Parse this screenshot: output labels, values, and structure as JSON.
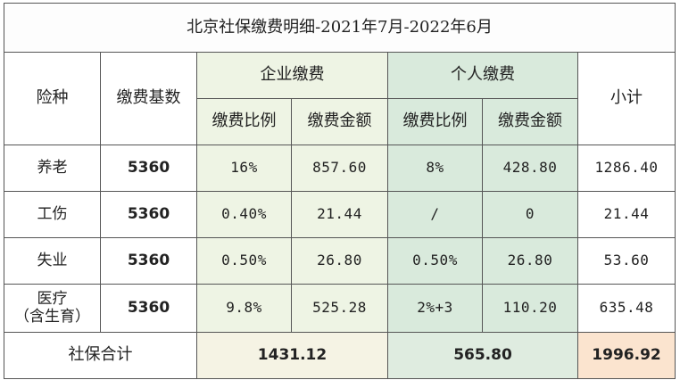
{
  "title": "北京社保缴费明细-2021年7月-2022年6月",
  "headers": {
    "type": "险种",
    "base": "缴费基数",
    "enterprise": "企业缴费",
    "personal": "个人缴费",
    "subtotal": "小计",
    "ratio": "缴费比例",
    "amount": "缴费金额"
  },
  "rows": [
    {
      "name": "养老",
      "name2": "",
      "base": "5360",
      "ent_ratio": "16%",
      "ent_amount": "857.60",
      "per_ratio": "8%",
      "per_amount": "428.80",
      "subtotal": "1286.40"
    },
    {
      "name": "工伤",
      "name2": "",
      "base": "5360",
      "ent_ratio": "0.40%",
      "ent_amount": "21.44",
      "per_ratio": "/",
      "per_amount": "0",
      "subtotal": "21.44"
    },
    {
      "name": "失业",
      "name2": "",
      "base": "5360",
      "ent_ratio": "0.50%",
      "ent_amount": "26.80",
      "per_ratio": "0.50%",
      "per_amount": "26.80",
      "subtotal": "53.60"
    },
    {
      "name": "医疗",
      "name2": "（含生育）",
      "base": "5360",
      "ent_ratio": "9.8%",
      "ent_amount": "525.28",
      "per_ratio": "2%+3",
      "per_amount": "110.20",
      "subtotal": "635.48"
    }
  ],
  "total": {
    "label": "社保合计",
    "enterprise": "1431.12",
    "personal": "565.80",
    "grand": "1996.92"
  },
  "colors": {
    "enterprise_bg": "#eef4e4",
    "personal_bg": "#d9eadc",
    "grand_bg": "#fbe4cf"
  }
}
